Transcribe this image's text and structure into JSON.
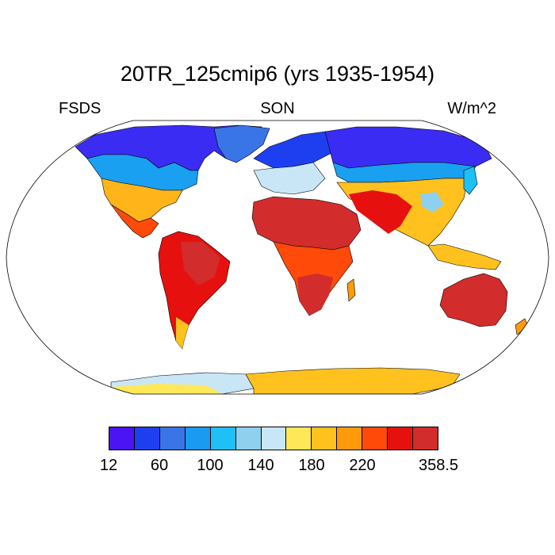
{
  "title": "20TR_125cmip6 (yrs 1935-1954)",
  "left_label": "FSDS",
  "center_label": "SON",
  "right_label": "W/m^2",
  "colorbar": {
    "colors": [
      "#4a14f5",
      "#1e3ff0",
      "#3a75e8",
      "#1a9af0",
      "#1ec0f5",
      "#8ed0ee",
      "#c9e6f6",
      "#ffe857",
      "#ffc11e",
      "#ff9a0a",
      "#ff4a0a",
      "#e6100f",
      "#d22c2c"
    ],
    "labels": [
      "12",
      "60",
      "100",
      "140",
      "180",
      "220",
      "358.5"
    ],
    "label_positions": [
      0,
      2,
      4,
      6,
      8,
      10,
      13
    ]
  },
  "map": {
    "projection": "robinson",
    "variable": "FSDS",
    "season": "SON",
    "units": "W/m^2"
  }
}
